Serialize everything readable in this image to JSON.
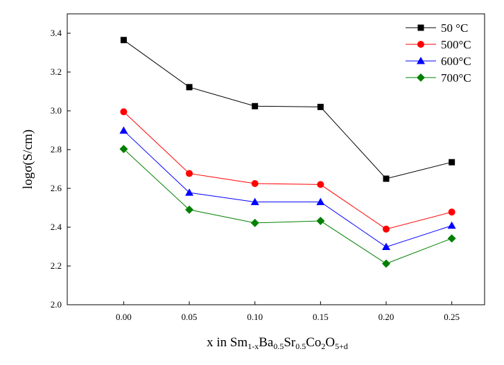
{
  "chart_data": {
    "type": "line",
    "x": [
      0.0,
      0.05,
      0.1,
      0.15,
      0.2,
      0.25
    ],
    "x_tick_labels": [
      "0.00",
      "0.05",
      "0.10",
      "0.15",
      "0.20",
      "0.25"
    ],
    "y_tick_labels": [
      "2.0",
      "2.2",
      "2.4",
      "2.6",
      "2.8",
      "3.0",
      "3.2",
      "3.4"
    ],
    "xlim": [
      -0.043,
      0.275
    ],
    "ylim": [
      2.0,
      3.5
    ],
    "ylabel": "logσ(S/cm)",
    "xlabel": {
      "parts": [
        {
          "t": "x in Sm",
          "sub": false
        },
        {
          "t": "1-x",
          "sub": true
        },
        {
          "t": "Ba",
          "sub": false
        },
        {
          "t": "0.5",
          "sub": true
        },
        {
          "t": "Sr",
          "sub": false
        },
        {
          "t": "0.5",
          "sub": true
        },
        {
          "t": "Co",
          "sub": false
        },
        {
          "t": "2",
          "sub": true
        },
        {
          "t": "O",
          "sub": false
        },
        {
          "t": "5+d",
          "sub": true
        }
      ]
    },
    "grid": false,
    "legend_position": "top-right",
    "series": [
      {
        "name": "50  °C",
        "color": "#000000",
        "marker": "square",
        "values": [
          3.365,
          3.122,
          3.024,
          3.02,
          2.65,
          2.735
        ]
      },
      {
        "name": "500°C",
        "color": "#ff0000",
        "marker": "circle",
        "values": [
          2.995,
          2.677,
          2.625,
          2.62,
          2.39,
          2.478
        ]
      },
      {
        "name": "600°C",
        "color": "#0000ff",
        "marker": "triangle",
        "values": [
          2.898,
          2.578,
          2.53,
          2.53,
          2.298,
          2.408
        ]
      },
      {
        "name": "700°C",
        "color": "#008000",
        "marker": "diamond",
        "values": [
          2.803,
          2.49,
          2.422,
          2.432,
          2.212,
          2.342
        ]
      }
    ]
  }
}
